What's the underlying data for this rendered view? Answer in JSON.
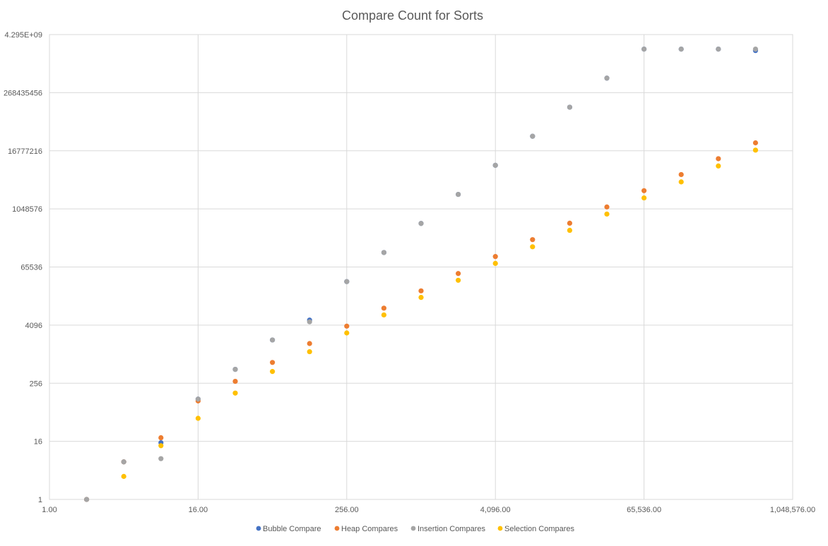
{
  "chart_data": {
    "type": "scatter",
    "title": "Compare Count for Sorts",
    "xlabel": "",
    "ylabel": "",
    "x_scale": "log2",
    "y_scale": "log2",
    "xlim": [
      1,
      1048576
    ],
    "ylim": [
      1,
      4294967296
    ],
    "x_ticks": [
      {
        "value": 1,
        "label": "1.00"
      },
      {
        "value": 16,
        "label": "16.00"
      },
      {
        "value": 256,
        "label": "256.00"
      },
      {
        "value": 4096,
        "label": "4,096.00"
      },
      {
        "value": 65536,
        "label": "65,536.00"
      },
      {
        "value": 1048576,
        "label": "1,048,576.00"
      }
    ],
    "y_ticks": [
      {
        "value": 1,
        "label": "1"
      },
      {
        "value": 16,
        "label": "16"
      },
      {
        "value": 256,
        "label": "256"
      },
      {
        "value": 4096,
        "label": "4096"
      },
      {
        "value": 65536,
        "label": "65536"
      },
      {
        "value": 1048576,
        "label": "1048576"
      },
      {
        "value": 16777216,
        "label": "16777216"
      },
      {
        "value": 268435456,
        "label": "268435456"
      },
      {
        "value": 4294967296,
        "label": "4.295E+09"
      }
    ],
    "grid": true,
    "legend_position": "bottom",
    "series": [
      {
        "name": "Bubble Compare",
        "color": "#4472c4",
        "points": [
          [
            2,
            1
          ],
          [
            4,
            6
          ],
          [
            8,
            15
          ],
          [
            16,
            120
          ],
          [
            32,
            496
          ],
          [
            64,
            2016
          ],
          [
            128,
            5200
          ],
          [
            256,
            32640
          ],
          [
            512,
            130816
          ],
          [
            1024,
            523776
          ],
          [
            2048,
            2096128
          ],
          [
            4096,
            8386560
          ],
          [
            8192,
            33550336
          ],
          [
            16384,
            134209536
          ],
          [
            32768,
            536854528
          ],
          [
            65536,
            2147450880
          ],
          [
            131072,
            2147483647
          ],
          [
            262144,
            2147483647
          ],
          [
            524288,
            2000000000
          ]
        ]
      },
      {
        "name": "Heap Compares",
        "color": "#ed7d31",
        "points": [
          [
            2,
            1
          ],
          [
            4,
            6
          ],
          [
            8,
            19
          ],
          [
            16,
            110
          ],
          [
            32,
            280
          ],
          [
            64,
            690
          ],
          [
            128,
            1700
          ],
          [
            256,
            3900
          ],
          [
            512,
            9200
          ],
          [
            1024,
            21000
          ],
          [
            2048,
            48000
          ],
          [
            4096,
            108000
          ],
          [
            8192,
            242000
          ],
          [
            16384,
            530000
          ],
          [
            32768,
            1150000
          ],
          [
            65536,
            2500000
          ],
          [
            131072,
            5400000
          ],
          [
            262144,
            11500000
          ],
          [
            524288,
            24500000
          ]
        ]
      },
      {
        "name": "Insertion Compares",
        "color": "#a5a5a5",
        "points": [
          [
            2,
            1
          ],
          [
            4,
            6
          ],
          [
            8,
            7
          ],
          [
            16,
            120
          ],
          [
            32,
            496
          ],
          [
            64,
            2016
          ],
          [
            128,
            4800
          ],
          [
            256,
            32640
          ],
          [
            512,
            130816
          ],
          [
            1024,
            523776
          ],
          [
            2048,
            2096128
          ],
          [
            4096,
            8386560
          ],
          [
            8192,
            33550336
          ],
          [
            16384,
            134209536
          ],
          [
            32768,
            536854528
          ],
          [
            65536,
            2147450880
          ],
          [
            131072,
            2147483647
          ],
          [
            262144,
            2147483647
          ],
          [
            524288,
            2147483647
          ]
        ]
      },
      {
        "name": "Selection Compares",
        "color": "#ffc000",
        "points": [
          [
            4,
            3
          ],
          [
            8,
            13
          ],
          [
            16,
            48
          ],
          [
            32,
            160
          ],
          [
            64,
            448
          ],
          [
            128,
            1152
          ],
          [
            256,
            2816
          ],
          [
            512,
            6656
          ],
          [
            1024,
            15360
          ],
          [
            2048,
            34816
          ],
          [
            4096,
            77824
          ],
          [
            8192,
            172032
          ],
          [
            16384,
            376832
          ],
          [
            32768,
            819200
          ],
          [
            65536,
            1769472
          ],
          [
            131072,
            3801088
          ],
          [
            262144,
            8126464
          ],
          [
            524288,
            17301504
          ]
        ]
      }
    ]
  }
}
